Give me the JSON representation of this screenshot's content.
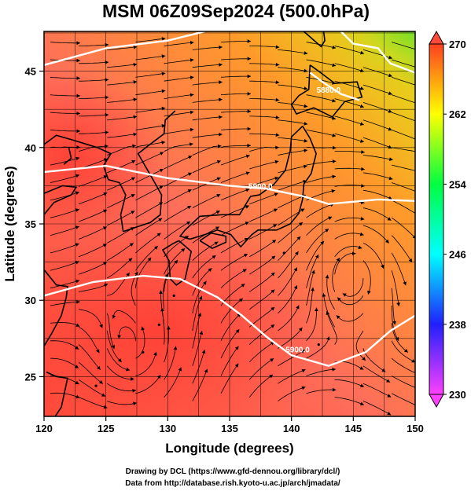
{
  "chart_data": {
    "type": "heatmap",
    "title": "MSM 06Z09Sep2024 (500.0hPa)",
    "xlabel": "Longitude (degrees)",
    "ylabel": "Latitude  (degrees)",
    "xlim": [
      120,
      150
    ],
    "ylim": [
      22.4,
      47.6
    ],
    "x_ticks": [
      "120",
      "125",
      "130",
      "135",
      "140",
      "145",
      "150"
    ],
    "y_ticks": [
      "25",
      "30",
      "35",
      "40",
      "45"
    ],
    "colorbar": {
      "range": [
        230,
        270
      ],
      "ticks": [
        "230",
        "238",
        "246",
        "254",
        "262",
        "270"
      ],
      "colors": [
        "#ff40ff",
        "#2020ff",
        "#00ffff",
        "#00ff40",
        "#ffff00",
        "#ff4020"
      ]
    },
    "contour_labels": [
      {
        "text": "5880.0",
        "lon": 143.0,
        "lat": 43.6
      },
      {
        "text": "5900.0",
        "lon": 137.5,
        "lat": 37.3
      },
      {
        "text": "5900.0",
        "lon": 140.5,
        "lat": 26.6
      }
    ],
    "footer": [
      "Drawing by DCL (https://www.gfd-dennou.org/library/dcl/)",
      "Data from http://database.rish.kyoto-u.ac.jp/arch/jmadata/"
    ],
    "colors": {
      "warm": "#ff6e5a",
      "hot": "#ff4a3a",
      "orange": "#ff9a2a",
      "yellow": "#e8d21a",
      "green": "#58e02a",
      "contour": "#ffffff"
    }
  }
}
